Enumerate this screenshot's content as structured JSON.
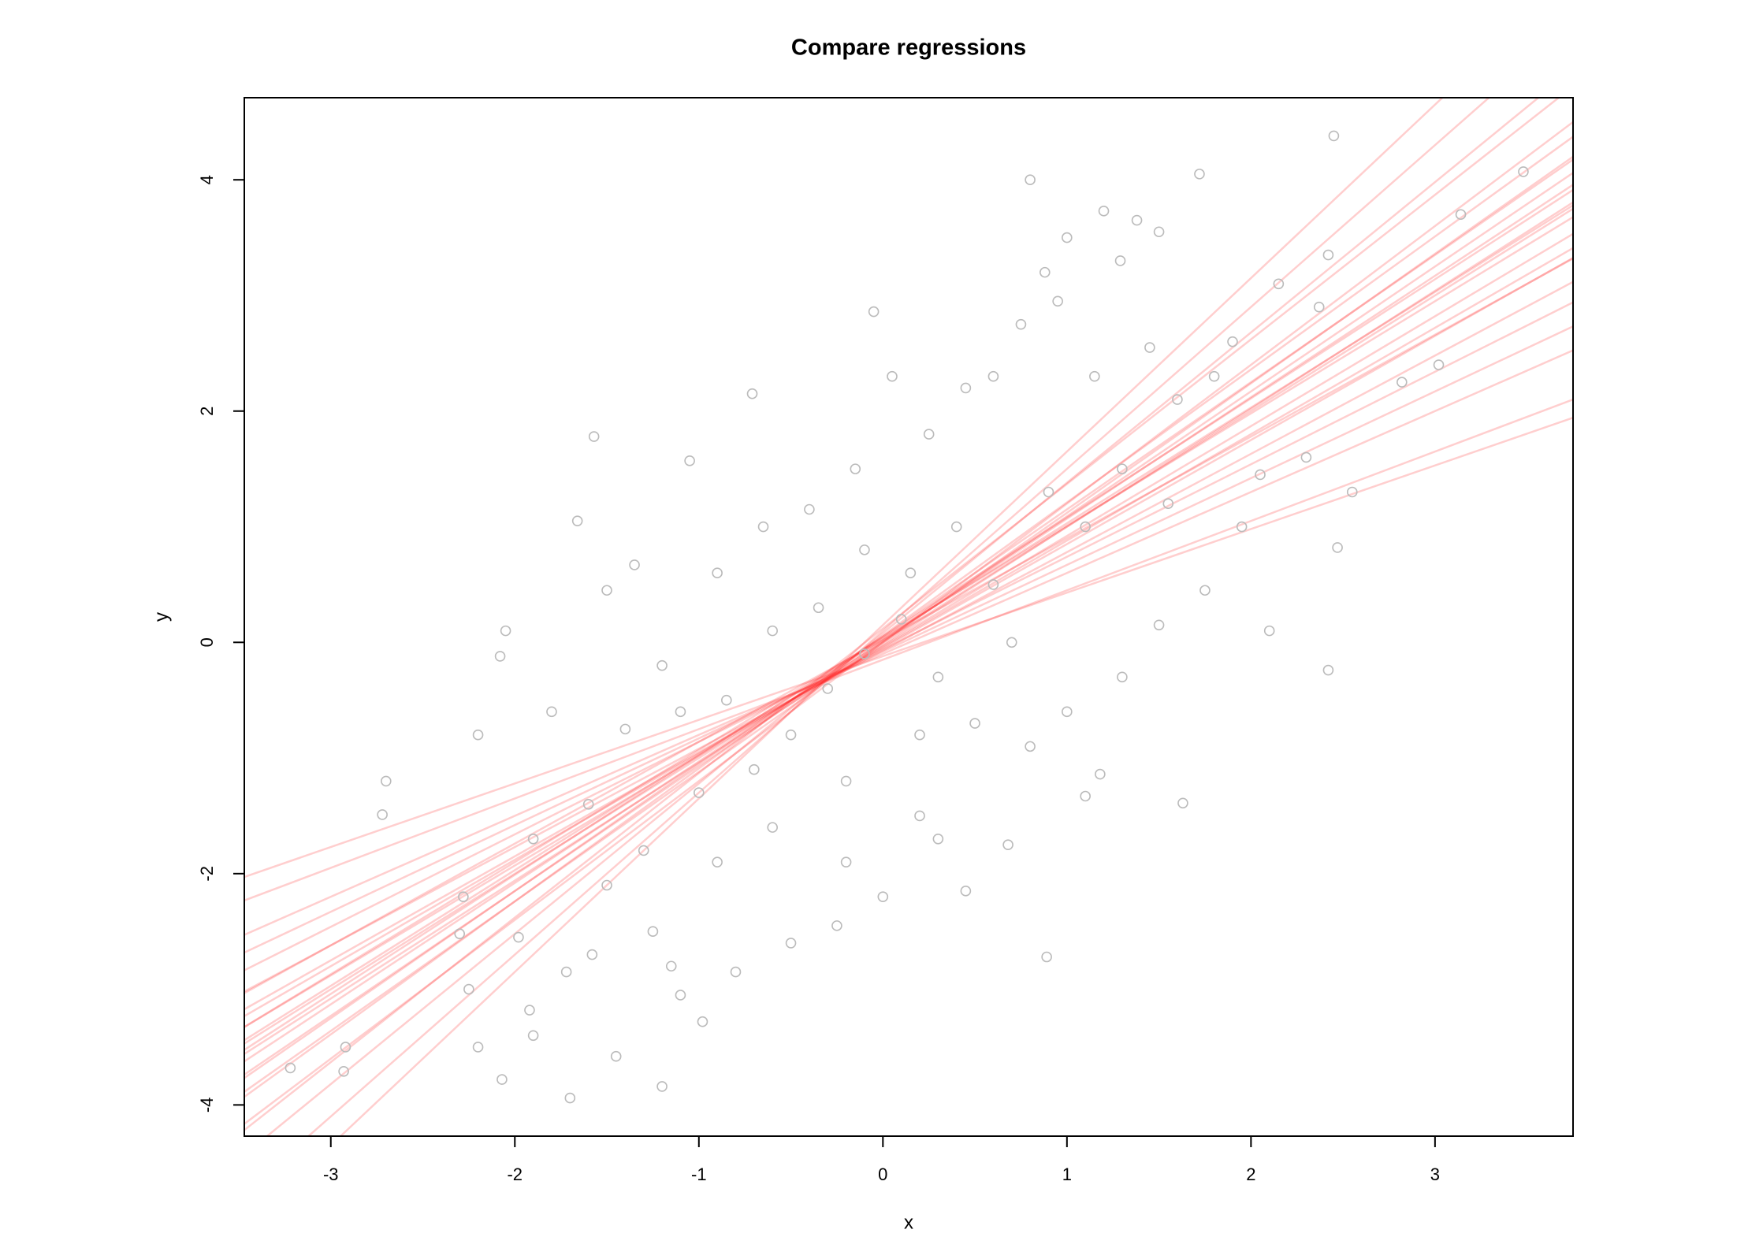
{
  "chart_data": {
    "type": "scatter",
    "title": "Compare regressions",
    "x_label": "x",
    "y_label": "y",
    "xlim": [
      -3.47,
      3.75
    ],
    "ylim": [
      -4.27,
      4.71
    ],
    "xticks": [
      -3,
      -2,
      -1,
      0,
      1,
      2,
      3
    ],
    "yticks": [
      -4,
      -2,
      0,
      2,
      4
    ],
    "point_color": "#bbbbbb",
    "line_color": "#ff2020",
    "x": [
      0.8,
      1.72,
      2.45,
      3.48,
      -3.22,
      -2.92,
      -2.93,
      -1.7,
      -1.2,
      -2.07,
      -1.45,
      -2.7,
      -2.72,
      -2.05,
      -2.08,
      -1.57,
      -0.71,
      -0.05,
      0.89,
      2.42,
      2.47,
      3.02,
      3.14,
      2.82,
      -1.66,
      1.63,
      1.1,
      1.18,
      1.0,
      1.2,
      1.38,
      1.5,
      1.29,
      0.88,
      2.15,
      2.37,
      2.42,
      1.9,
      -2.28,
      -2.3,
      -2.25,
      -2.2,
      -1.98,
      -1.92,
      -1.9,
      -1.72,
      -1.58,
      -1.5,
      -1.25,
      -1.15,
      -1.1,
      -0.98,
      -0.8,
      -0.5,
      -0.25,
      0.0,
      0.3,
      0.45,
      0.68,
      0.2,
      -0.2,
      -0.6,
      -0.9,
      -1.3,
      -1.6,
      -1.9,
      -2.2,
      -1.8,
      -1.4,
      -1.2,
      -1.5,
      -1.35,
      -1.05,
      -0.9,
      -0.65,
      -0.4,
      -0.15,
      0.05,
      0.25,
      0.45,
      0.6,
      0.75,
      0.95,
      1.15,
      1.45,
      1.6,
      1.8,
      2.05,
      2.3,
      2.55,
      1.75,
      1.5,
      1.3,
      1.0,
      0.8,
      0.5,
      0.3,
      0.1,
      -0.1,
      -0.3,
      -0.5,
      -0.7,
      -0.85,
      -0.6,
      -0.35,
      -0.1,
      0.15,
      0.4,
      0.6,
      0.9,
      1.1,
      1.3,
      1.55,
      0.7,
      0.2,
      -0.2,
      -1.0,
      -1.1,
      2.1,
      1.95
    ],
    "y": [
      4.0,
      4.05,
      4.38,
      4.07,
      -3.68,
      -3.5,
      -3.71,
      -3.94,
      -3.84,
      -3.78,
      -3.58,
      -1.2,
      -1.49,
      0.1,
      -0.12,
      1.78,
      2.15,
      2.86,
      -2.72,
      -0.24,
      0.82,
      2.4,
      3.7,
      2.25,
      1.05,
      -1.39,
      -1.33,
      -1.14,
      3.5,
      3.73,
      3.65,
      3.55,
      3.3,
      3.2,
      3.1,
      2.9,
      3.35,
      2.6,
      -2.2,
      -2.52,
      -3.0,
      -3.5,
      -2.55,
      -3.18,
      -3.4,
      -2.85,
      -2.7,
      -2.1,
      -2.5,
      -2.8,
      -3.05,
      -3.28,
      -2.85,
      -2.6,
      -2.45,
      -2.2,
      -1.7,
      -2.15,
      -1.75,
      -1.5,
      -1.9,
      -1.6,
      -1.9,
      -1.8,
      -1.4,
      -1.7,
      -0.8,
      -0.6,
      -0.75,
      -0.2,
      0.45,
      0.67,
      1.57,
      0.6,
      1.0,
      1.15,
      1.5,
      2.3,
      1.8,
      2.2,
      2.3,
      2.75,
      2.95,
      2.3,
      2.55,
      2.1,
      2.3,
      1.45,
      1.6,
      1.3,
      0.45,
      0.15,
      -0.3,
      -0.6,
      -0.9,
      -0.7,
      -0.3,
      0.2,
      -0.1,
      -0.4,
      -0.8,
      -1.1,
      -0.5,
      0.1,
      0.3,
      0.8,
      0.6,
      1.0,
      0.5,
      1.3,
      1.0,
      1.5,
      1.2,
      0.0,
      -0.8,
      -1.2,
      -1.3,
      -0.6,
      0.1,
      1.0
    ],
    "lines": [
      {
        "intercept": 0.0,
        "slope": 1.0
      },
      {
        "intercept": 0.02,
        "slope": 1.05
      },
      {
        "intercept": -0.03,
        "slope": 0.95
      },
      {
        "intercept": 0.05,
        "slope": 1.1
      },
      {
        "intercept": -0.05,
        "slope": 0.9
      },
      {
        "intercept": 0.0,
        "slope": 1.2
      },
      {
        "intercept": -0.06,
        "slope": 0.8
      },
      {
        "intercept": 0.08,
        "slope": 1.3
      },
      {
        "intercept": -0.1,
        "slope": 0.7
      },
      {
        "intercept": 0.1,
        "slope": 1.4
      },
      {
        "intercept": -0.12,
        "slope": 0.55
      },
      {
        "intercept": 0.03,
        "slope": 1.0
      },
      {
        "intercept": -0.02,
        "slope": 1.02
      },
      {
        "intercept": 0.04,
        "slope": 0.97
      },
      {
        "intercept": 0.01,
        "slope": 1.08
      },
      {
        "intercept": -0.04,
        "slope": 0.92
      },
      {
        "intercept": 0.06,
        "slope": 1.15
      },
      {
        "intercept": -0.07,
        "slope": 0.85
      },
      {
        "intercept": 0.12,
        "slope": 1.25
      },
      {
        "intercept": -0.08,
        "slope": 0.75
      },
      {
        "intercept": 0.0,
        "slope": 1.12
      },
      {
        "intercept": 0.02,
        "slope": 0.88
      },
      {
        "intercept": 0.15,
        "slope": 1.5
      },
      {
        "intercept": -0.15,
        "slope": 0.6
      },
      {
        "intercept": 0.05,
        "slope": 1.03
      }
    ]
  }
}
